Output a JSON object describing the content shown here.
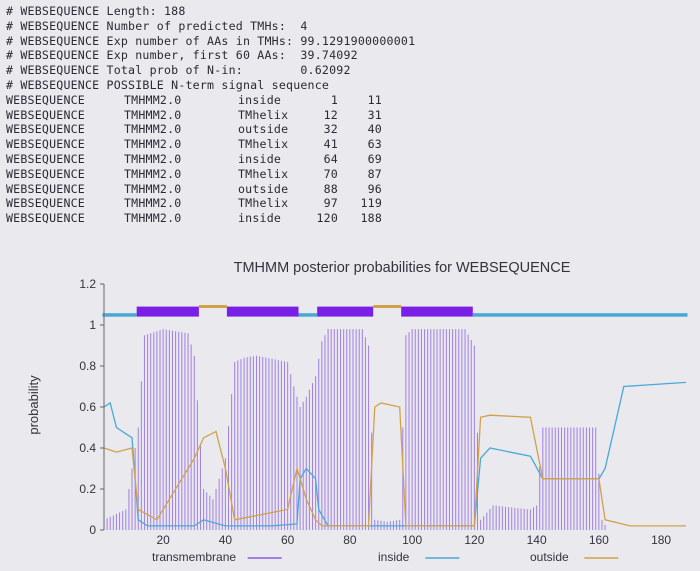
{
  "header_lines": [
    "# WEBSEQUENCE Length: 188",
    "# WEBSEQUENCE Number of predicted TMHs:  4",
    "# WEBSEQUENCE Exp number of AAs in TMHs: 99.1291900000001",
    "# WEBSEQUENCE Exp number, first 60 AAs:  39.74092",
    "# WEBSEQUENCE Total prob of N-in:        0.62092",
    "# WEBSEQUENCE POSSIBLE N-term signal sequence"
  ],
  "topology_rows": [
    {
      "id": "WEBSEQUENCE",
      "program": "TMHMM2.0",
      "location": "inside",
      "start": "1",
      "end": "11"
    },
    {
      "id": "WEBSEQUENCE",
      "program": "TMHMM2.0",
      "location": "TMhelix",
      "start": "12",
      "end": "31"
    },
    {
      "id": "WEBSEQUENCE",
      "program": "TMHMM2.0",
      "location": "outside",
      "start": "32",
      "end": "40"
    },
    {
      "id": "WEBSEQUENCE",
      "program": "TMHMM2.0",
      "location": "TMhelix",
      "start": "41",
      "end": "63"
    },
    {
      "id": "WEBSEQUENCE",
      "program": "TMHMM2.0",
      "location": "inside",
      "start": "64",
      "end": "69"
    },
    {
      "id": "WEBSEQUENCE",
      "program": "TMHMM2.0",
      "location": "TMhelix",
      "start": "70",
      "end": "87"
    },
    {
      "id": "WEBSEQUENCE",
      "program": "TMHMM2.0",
      "location": "outside",
      "start": "88",
      "end": "96"
    },
    {
      "id": "WEBSEQUENCE",
      "program": "TMHMM2.0",
      "location": "TMhelix",
      "start": "97",
      "end": "119"
    },
    {
      "id": "WEBSEQUENCE",
      "program": "TMHMM2.0",
      "location": "inside",
      "start": "120",
      "end": "188"
    }
  ],
  "colors": {
    "transmembrane": "#8a5ce0",
    "tm_bar": "#7a1fe6",
    "inside": "#4aa8d8",
    "outside": "#d2a24a",
    "text": "#2a2a36",
    "background": "#e9e9ee"
  },
  "chart_data": {
    "type": "area",
    "title": "TMHMM posterior probabilities for WEBSEQUENCE",
    "xlabel": "",
    "ylabel": "probability",
    "xlim": [
      1,
      188
    ],
    "ylim": [
      0,
      1.2
    ],
    "x_ticks": [
      "20",
      "40",
      "60",
      "80",
      "100",
      "120",
      "140",
      "160",
      "180"
    ],
    "y_ticks": [
      "0",
      "0.2",
      "0.4",
      "0.6",
      "0.8",
      "1",
      "1.2"
    ],
    "legend": [
      "transmembrane",
      "inside",
      "outside"
    ],
    "legend_placement": "bottom",
    "grid": false,
    "topology_bar": [
      {
        "state": "inside",
        "start": 1,
        "end": 11
      },
      {
        "state": "transmembrane",
        "start": 12,
        "end": 31
      },
      {
        "state": "outside",
        "start": 32,
        "end": 40
      },
      {
        "state": "transmembrane",
        "start": 41,
        "end": 63
      },
      {
        "state": "inside",
        "start": 64,
        "end": 69
      },
      {
        "state": "transmembrane",
        "start": 70,
        "end": 87
      },
      {
        "state": "outside",
        "start": 88,
        "end": 96
      },
      {
        "state": "transmembrane",
        "start": 97,
        "end": 119
      },
      {
        "state": "inside",
        "start": 120,
        "end": 188
      }
    ],
    "series": [
      {
        "name": "transmembrane",
        "x": [
          1,
          8,
          12,
          14,
          20,
          28,
          30,
          33,
          36,
          40,
          43,
          46,
          50,
          60,
          62,
          64,
          66,
          69,
          71,
          73,
          84,
          86,
          88,
          92,
          96,
          98,
          100,
          117,
          120,
          122,
          126,
          138,
          140,
          142,
          159,
          161,
          163,
          188
        ],
        "y": [
          0.05,
          0.1,
          0.5,
          0.95,
          0.98,
          0.96,
          0.85,
          0.2,
          0.15,
          0.35,
          0.82,
          0.84,
          0.85,
          0.82,
          0.7,
          0.6,
          0.65,
          0.75,
          0.92,
          0.98,
          0.98,
          0.9,
          0.05,
          0.04,
          0.05,
          0.95,
          0.98,
          0.98,
          0.9,
          0.05,
          0.12,
          0.1,
          0.12,
          0.5,
          0.5,
          0.05,
          0.0,
          0.0
        ]
      },
      {
        "name": "inside",
        "x": [
          1,
          3,
          5,
          10,
          12,
          15,
          20,
          30,
          33,
          40,
          43,
          55,
          63,
          64,
          66,
          69,
          70,
          73,
          86,
          88,
          90,
          96,
          98,
          120,
          122,
          125,
          138,
          142,
          160,
          162,
          168,
          188
        ],
        "y": [
          0.6,
          0.62,
          0.5,
          0.45,
          0.05,
          0.02,
          0.02,
          0.02,
          0.05,
          0.02,
          0.02,
          0.02,
          0.03,
          0.25,
          0.3,
          0.25,
          0.1,
          0.02,
          0.02,
          0.02,
          0.02,
          0.02,
          0.02,
          0.02,
          0.35,
          0.4,
          0.36,
          0.25,
          0.25,
          0.3,
          0.7,
          0.72
        ]
      },
      {
        "name": "outside",
        "x": [
          1,
          5,
          10,
          12,
          18,
          26,
          30,
          33,
          37,
          40,
          43,
          60,
          63,
          66,
          69,
          71,
          73,
          86,
          88,
          90,
          96,
          98,
          120,
          122,
          125,
          138,
          142,
          160,
          162,
          170,
          188
        ],
        "y": [
          0.4,
          0.38,
          0.4,
          0.1,
          0.05,
          0.25,
          0.35,
          0.45,
          0.48,
          0.3,
          0.05,
          0.1,
          0.3,
          0.15,
          0.05,
          0.02,
          0.02,
          0.02,
          0.6,
          0.62,
          0.6,
          0.02,
          0.02,
          0.55,
          0.56,
          0.55,
          0.25,
          0.25,
          0.05,
          0.02,
          0.02
        ]
      }
    ]
  }
}
